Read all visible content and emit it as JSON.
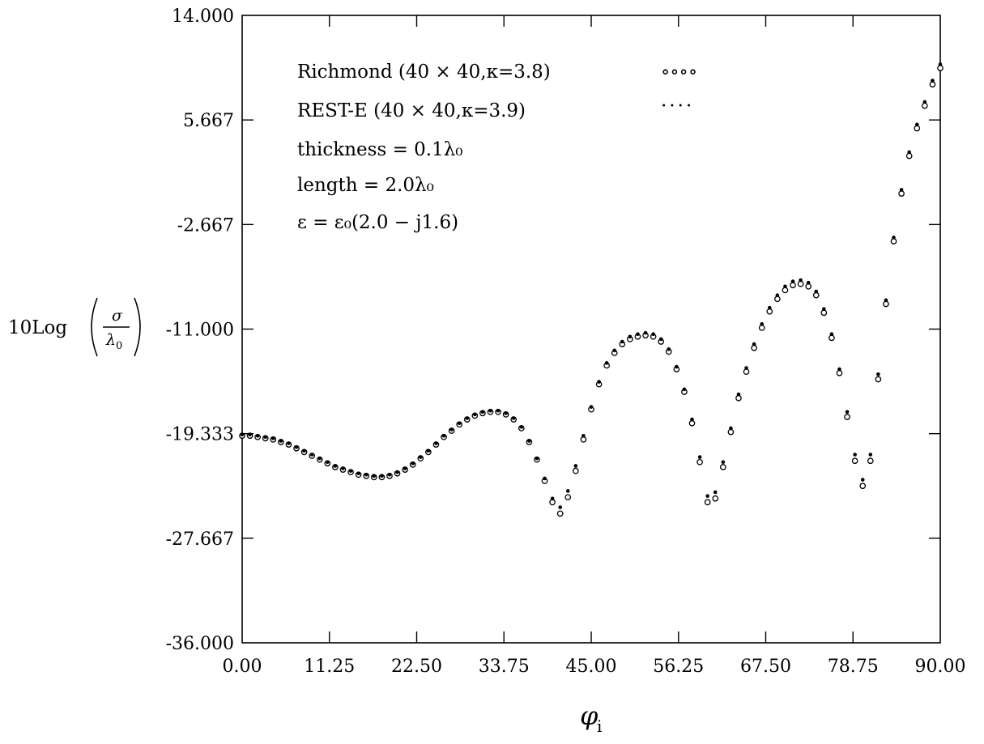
{
  "chart_data": {
    "type": "scatter",
    "ylabel": "10Log(σ/λ₀)",
    "ylabel_parts": {
      "prefix": "10Log",
      "numerator": "σ",
      "denominator": "λ",
      "denominator_sub": "0"
    },
    "xlabel": "φ",
    "xlabel_sub": "i",
    "xlim": [
      0,
      90
    ],
    "ylim": [
      -36,
      14
    ],
    "xticks": [
      "0.00",
      "11.25",
      "22.50",
      "33.75",
      "45.00",
      "56.25",
      "67.50",
      "78.75",
      "90.00"
    ],
    "yticks": [
      "-36.000",
      "-27.667",
      "-19.333",
      "-11.000",
      "-2.667",
      "5.667",
      "14.000"
    ],
    "grid": false,
    "legend_position": "top-left",
    "annotations": [
      {
        "id": "richmond",
        "text": "Richmond (40 × 40,κ=3.8)",
        "marker": "∘∘∘∘"
      },
      {
        "id": "rest",
        "text": "REST-E (40 × 40,κ=3.9)",
        "marker": "····"
      },
      {
        "id": "thickness",
        "text": "thickness = 0.1λ₀"
      },
      {
        "id": "length",
        "text": "length = 2.0λ₀"
      },
      {
        "id": "epsilon",
        "text": "ε = ε₀(2.0 − j1.6)"
      }
    ],
    "series": [
      {
        "name": "Richmond (40 × 40,κ=3.8)",
        "marker": "open-circle",
        "x": [
          0,
          1,
          2,
          3,
          4,
          5,
          6,
          7,
          8,
          9,
          10,
          11,
          12,
          13,
          14,
          15,
          16,
          17,
          18,
          19,
          20,
          21,
          22,
          23,
          24,
          25,
          26,
          27,
          28,
          29,
          30,
          31,
          32,
          33,
          34,
          35,
          36,
          37,
          38,
          39,
          40,
          41,
          42,
          43,
          44,
          45,
          46,
          47,
          48,
          49,
          50,
          51,
          52,
          53,
          54,
          55,
          56,
          57,
          58,
          59,
          60,
          61,
          62,
          63,
          64,
          65,
          66,
          67,
          68,
          69,
          70,
          71,
          72,
          73,
          74,
          75,
          76,
          77,
          78,
          79,
          80,
          81,
          82,
          83,
          84,
          85,
          86,
          87,
          88,
          89,
          90
        ],
        "y": [
          -19.5,
          -19.5,
          -19.6,
          -19.7,
          -19.8,
          -20.0,
          -20.2,
          -20.5,
          -20.8,
          -21.1,
          -21.4,
          -21.7,
          -22.0,
          -22.2,
          -22.4,
          -22.6,
          -22.7,
          -22.8,
          -22.8,
          -22.7,
          -22.5,
          -22.2,
          -21.8,
          -21.3,
          -20.8,
          -20.2,
          -19.6,
          -19.1,
          -18.6,
          -18.2,
          -17.9,
          -17.7,
          -17.6,
          -17.6,
          -17.8,
          -18.2,
          -18.9,
          -20.0,
          -21.4,
          -23.1,
          -24.8,
          -25.7,
          -24.4,
          -22.3,
          -19.8,
          -17.4,
          -15.4,
          -13.9,
          -12.9,
          -12.2,
          -11.8,
          -11.6,
          -11.5,
          -11.6,
          -12.0,
          -12.8,
          -14.2,
          -16.0,
          -18.5,
          -21.6,
          -24.8,
          -24.5,
          -22.0,
          -19.2,
          -16.5,
          -14.4,
          -12.5,
          -10.9,
          -9.6,
          -8.6,
          -7.9,
          -7.5,
          -7.4,
          -7.6,
          -8.3,
          -9.7,
          -11.7,
          -14.5,
          -18.0,
          -21.5,
          -23.5,
          -21.5,
          -15.0,
          -9.0,
          -4.0,
          -0.2,
          2.8,
          5.0,
          6.8,
          8.5,
          9.8
        ]
      },
      {
        "name": "REST-E (40 × 40,κ=3.9)",
        "marker": "dot",
        "x": [
          0,
          1,
          2,
          3,
          4,
          5,
          6,
          7,
          8,
          9,
          10,
          11,
          12,
          13,
          14,
          15,
          16,
          17,
          18,
          19,
          20,
          21,
          22,
          23,
          24,
          25,
          26,
          27,
          28,
          29,
          30,
          31,
          32,
          33,
          34,
          35,
          36,
          37,
          38,
          39,
          40,
          41,
          42,
          43,
          44,
          45,
          46,
          47,
          48,
          49,
          50,
          51,
          52,
          53,
          54,
          55,
          56,
          57,
          58,
          59,
          60,
          61,
          62,
          63,
          64,
          65,
          66,
          67,
          68,
          69,
          70,
          71,
          72,
          73,
          74,
          75,
          76,
          77,
          78,
          79,
          80,
          81,
          82,
          83,
          84,
          85,
          86,
          87,
          88,
          89,
          90
        ],
        "y": [
          -19.4,
          -19.4,
          -19.5,
          -19.6,
          -19.7,
          -19.9,
          -20.1,
          -20.4,
          -20.7,
          -21.0,
          -21.3,
          -21.6,
          -21.9,
          -22.1,
          -22.3,
          -22.5,
          -22.6,
          -22.7,
          -22.7,
          -22.6,
          -22.4,
          -22.1,
          -21.7,
          -21.2,
          -20.7,
          -20.1,
          -19.5,
          -19.0,
          -18.5,
          -18.1,
          -17.8,
          -17.6,
          -17.5,
          -17.5,
          -17.7,
          -18.1,
          -18.8,
          -19.9,
          -21.3,
          -22.9,
          -24.5,
          -25.2,
          -23.9,
          -21.9,
          -19.5,
          -17.2,
          -15.2,
          -13.7,
          -12.7,
          -12.0,
          -11.6,
          -11.4,
          -11.3,
          -11.4,
          -11.8,
          -12.6,
          -14.0,
          -15.8,
          -18.2,
          -21.2,
          -24.3,
          -24.0,
          -21.6,
          -18.9,
          -16.2,
          -14.1,
          -12.2,
          -10.6,
          -9.3,
          -8.3,
          -7.6,
          -7.2,
          -7.1,
          -7.3,
          -8.0,
          -9.4,
          -11.4,
          -14.2,
          -17.6,
          -21.0,
          -23.0,
          -21.0,
          -14.6,
          -8.7,
          -3.7,
          0.1,
          3.1,
          5.3,
          7.1,
          8.8,
          10.1
        ]
      }
    ]
  }
}
